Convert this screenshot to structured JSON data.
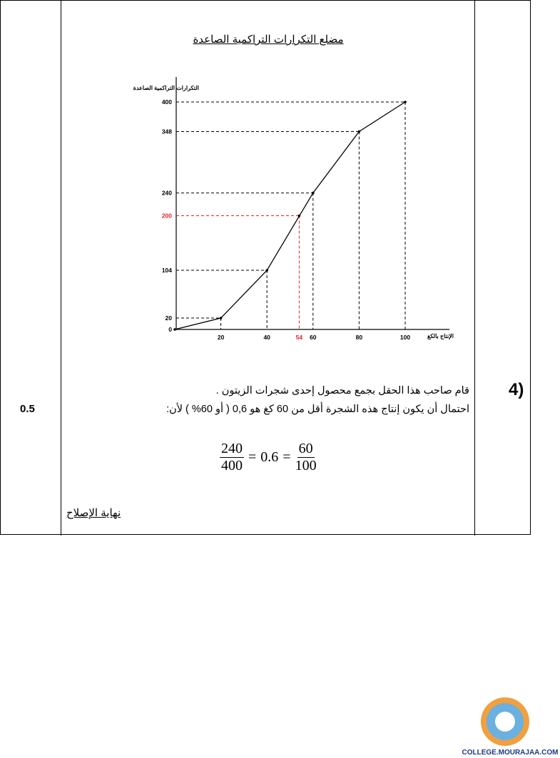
{
  "score": "0.5",
  "question_number": "4)",
  "chart_title": "مضلع التكرارات التراكمية الصاعدة",
  "statement_line1": "قام صاحب هذا الحقل بجمع محصول إحدى شجرات الزيتون .",
  "statement_line2": "احتمال أن يكون إنتاج هذه الشجرة أقل من 60 كغ هو  0,6  ( أو 60% ) لأن:",
  "formula": {
    "num1": "240",
    "den1": "400",
    "eq1": "=",
    "mid": "0.6",
    "eq2": "=",
    "num2": "60",
    "den2": "100"
  },
  "end_text": "نهاية الإصلاح",
  "logo_text": "COLLEGE.MOURAJAA.COM",
  "chart_data": {
    "type": "line",
    "title": "مضلع التكرارات التراكمية الصاعدة",
    "xlabel": "الإنتاج بالكغ",
    "ylabel": "التكرارات التراكمية الصاعدة",
    "x": [
      0,
      20,
      40,
      60,
      80,
      100
    ],
    "y": [
      0,
      20,
      104,
      240,
      348,
      400
    ],
    "xticks": [
      "20",
      "40",
      "54",
      "60",
      "80",
      "100"
    ],
    "yticks": [
      "0",
      "20",
      "104",
      "200",
      "240",
      "348",
      "400"
    ],
    "xlim": [
      0,
      100
    ],
    "ylim": [
      0,
      400
    ],
    "highlight": {
      "x": 54,
      "y": 200,
      "color": "#e8202a"
    },
    "line_color": "#000000",
    "grid": false
  }
}
